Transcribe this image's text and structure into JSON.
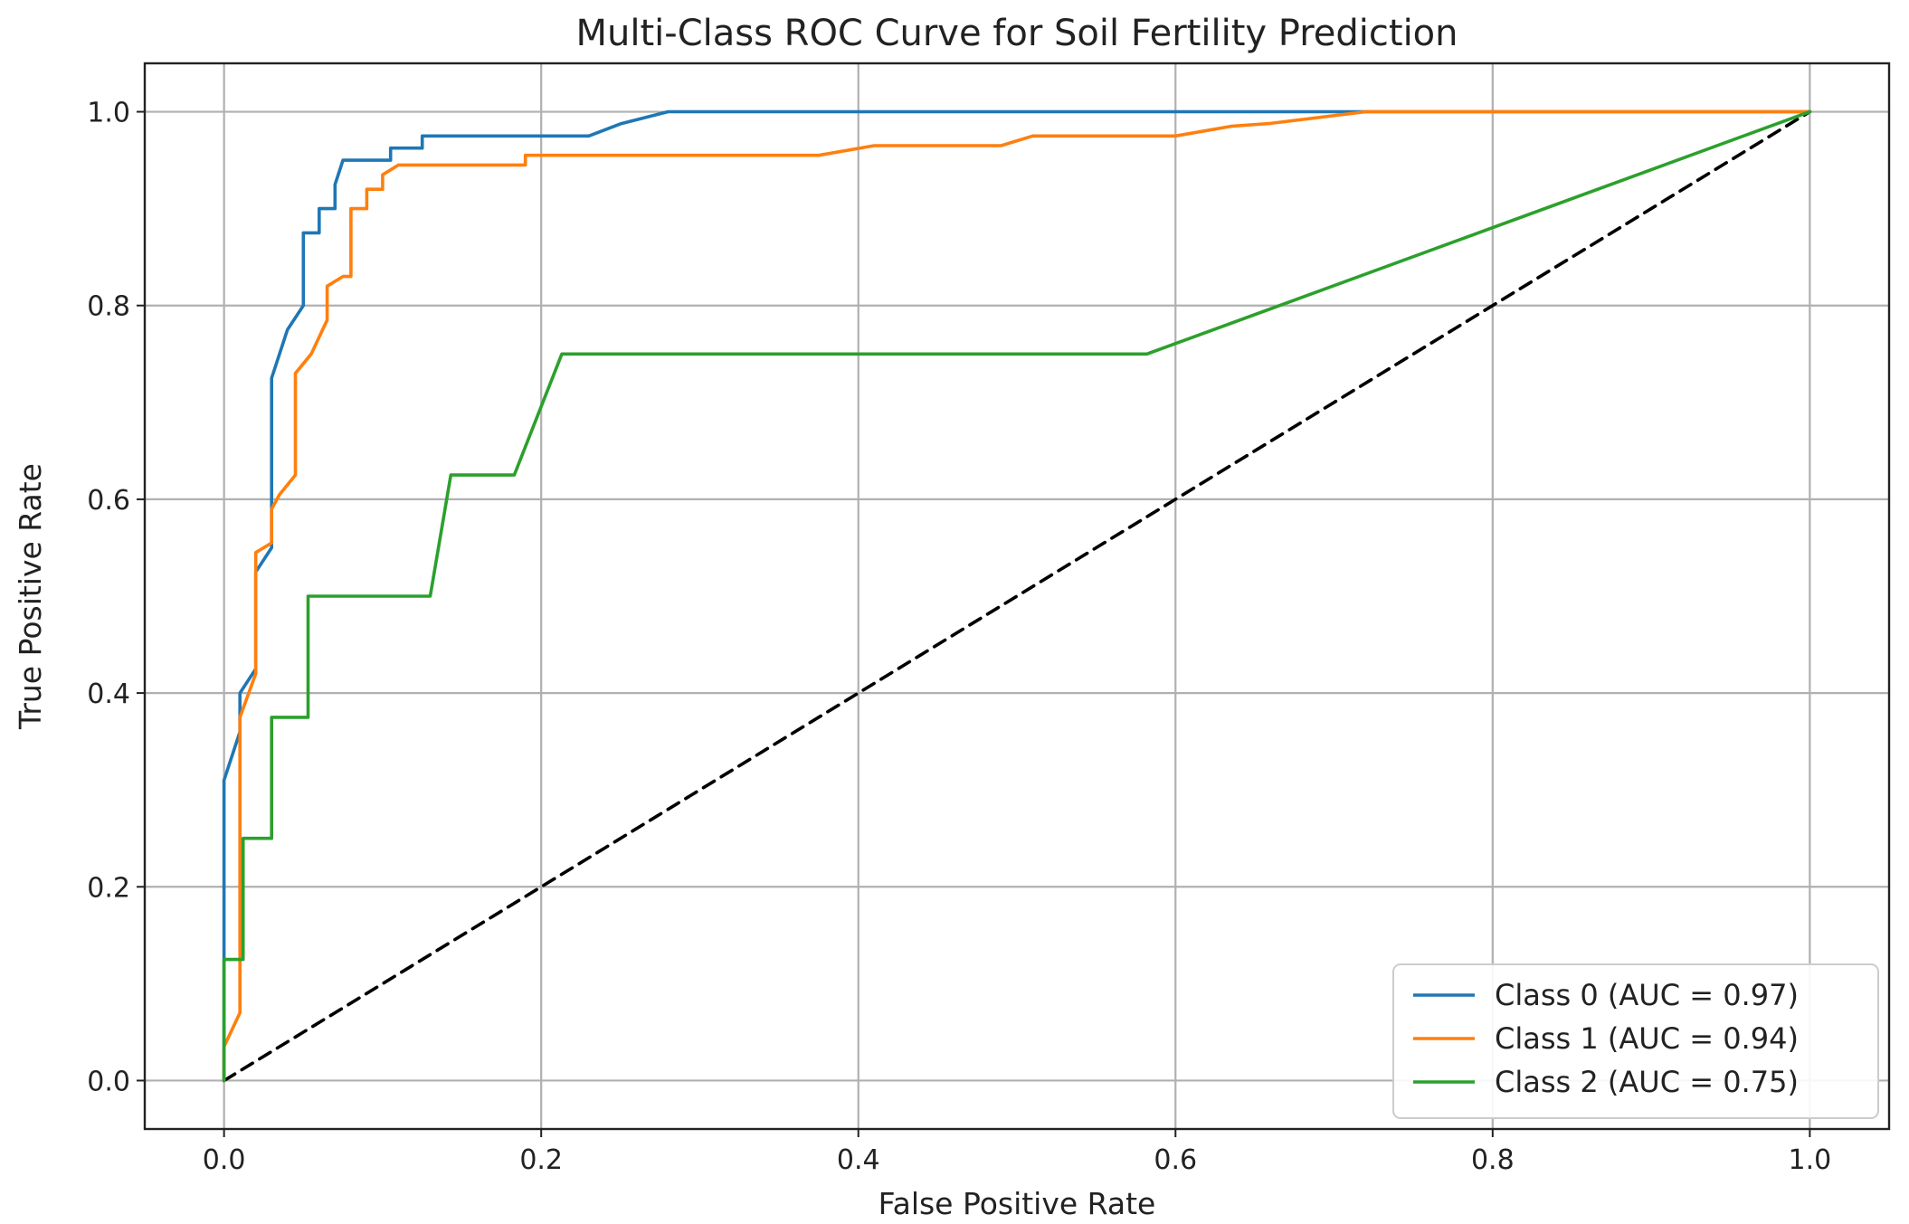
{
  "chart_data": {
    "type": "line",
    "title": "Multi-Class ROC Curve for Soil Fertility Prediction",
    "xlabel": "False Positive Rate",
    "ylabel": "True Positive Rate",
    "xlim": [
      -0.05,
      1.05
    ],
    "ylim": [
      -0.05,
      1.05
    ],
    "xticks": [
      0.0,
      0.2,
      0.4,
      0.6,
      0.8,
      1.0
    ],
    "xtick_labels": [
      "0.0",
      "0.2",
      "0.4",
      "0.6",
      "0.8",
      "1.0"
    ],
    "yticks": [
      0.0,
      0.2,
      0.4,
      0.6,
      0.8,
      1.0
    ],
    "ytick_labels": [
      "0.0",
      "0.2",
      "0.4",
      "0.6",
      "0.8",
      "1.0"
    ],
    "grid": true,
    "legend_position": "lower-right",
    "series": [
      {
        "name": "Class 0 (AUC = 0.97)",
        "color": "#1f77b4",
        "x": [
          0,
          0,
          0,
          0.01,
          0.01,
          0.02,
          0.02,
          0.03,
          0.03,
          0.04,
          0.05,
          0.05,
          0.06,
          0.06,
          0.07,
          0.07,
          0.075,
          0.105,
          0.105,
          0.125,
          0.125,
          0.23,
          0.25,
          0.28,
          1.0
        ],
        "y": [
          0,
          0.125,
          0.31,
          0.36,
          0.4,
          0.425,
          0.525,
          0.55,
          0.725,
          0.775,
          0.8,
          0.875,
          0.875,
          0.9,
          0.9,
          0.925,
          0.95,
          0.95,
          0.9625,
          0.9625,
          0.975,
          0.975,
          0.9875,
          1.0,
          1.0
        ]
      },
      {
        "name": "Class 1 (AUC = 0.94)",
        "color": "#ff7f0e",
        "x": [
          0,
          0,
          0.01,
          0.01,
          0.02,
          0.02,
          0.03,
          0.03,
          0.035,
          0.045,
          0.045,
          0.055,
          0.065,
          0.065,
          0.075,
          0.08,
          0.08,
          0.09,
          0.09,
          0.1,
          0.1,
          0.11,
          0.19,
          0.19,
          0.375,
          0.41,
          0.49,
          0.51,
          0.6,
          0.635,
          0.66,
          0.72,
          1.0
        ],
        "y": [
          0,
          0.035,
          0.07,
          0.375,
          0.42,
          0.545,
          0.555,
          0.59,
          0.605,
          0.625,
          0.73,
          0.75,
          0.785,
          0.82,
          0.83,
          0.83,
          0.9,
          0.9,
          0.92,
          0.92,
          0.935,
          0.945,
          0.945,
          0.955,
          0.955,
          0.965,
          0.965,
          0.975,
          0.975,
          0.985,
          0.988,
          1.0,
          1.0
        ]
      },
      {
        "name": "Class 2 (AUC = 0.75)",
        "color": "#2ca02c",
        "x": [
          0,
          0,
          0.012,
          0.012,
          0.03,
          0.03,
          0.053,
          0.053,
          0.13,
          0.143,
          0.183,
          0.213,
          0.582,
          1.0
        ],
        "y": [
          0,
          0.125,
          0.125,
          0.25,
          0.25,
          0.375,
          0.375,
          0.5,
          0.5,
          0.625,
          0.625,
          0.75,
          0.75,
          1.0
        ]
      },
      {
        "color": "#000000",
        "dashed": true,
        "x": [
          0,
          1
        ],
        "y": [
          0,
          1
        ]
      }
    ]
  }
}
